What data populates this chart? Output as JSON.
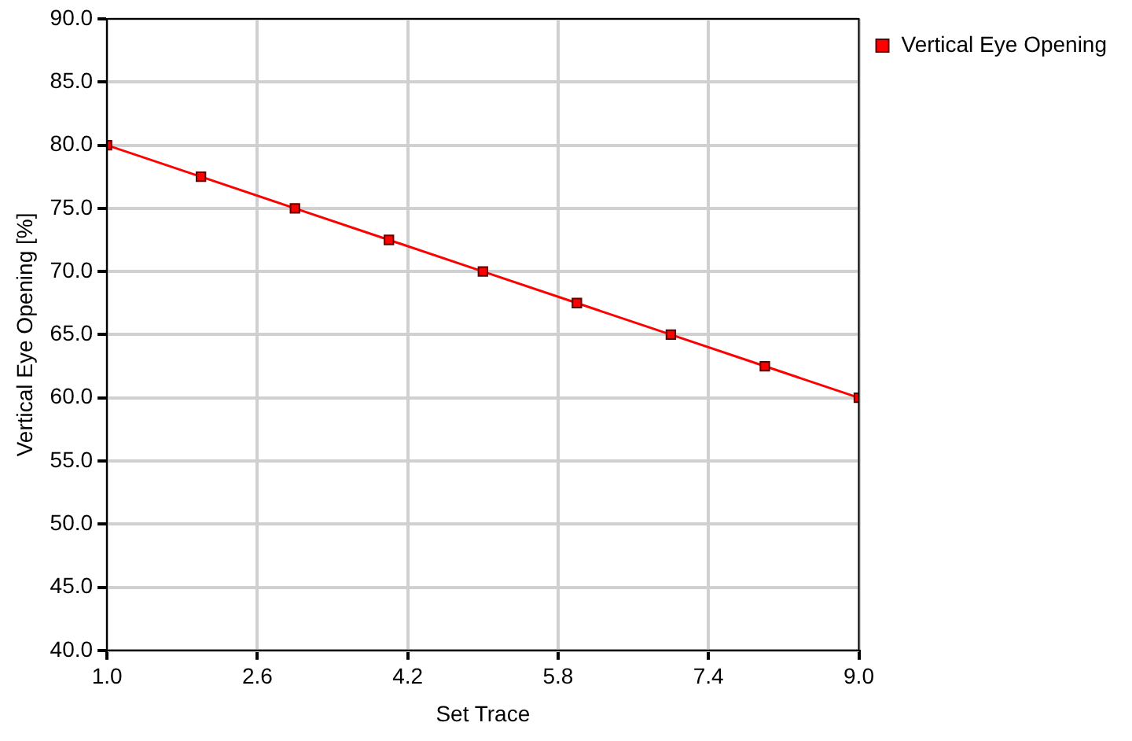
{
  "chart_data": {
    "type": "line",
    "xlabel": "Set Trace",
    "ylabel": "Vertical Eye Opening [%]",
    "x": [
      1,
      2,
      3,
      4,
      5,
      6,
      7,
      8,
      9
    ],
    "series": [
      {
        "name": "Vertical Eye Opening",
        "color": "#ff0000",
        "values": [
          80,
          77.5,
          75,
          72.5,
          70,
          67.5,
          65,
          62.5,
          60
        ]
      }
    ],
    "xlim": [
      1,
      9
    ],
    "xticks": [
      {
        "value": 1,
        "label": "1.0"
      },
      {
        "value": 2.6,
        "label": "2.6"
      },
      {
        "value": 4.2,
        "label": "4.2"
      },
      {
        "value": 5.8,
        "label": "5.8"
      },
      {
        "value": 7.4,
        "label": "7.4"
      },
      {
        "value": 9,
        "label": "9.0"
      }
    ],
    "ylim": [
      40,
      90
    ],
    "yticks": [
      {
        "value": 40,
        "label": "40.0"
      },
      {
        "value": 45,
        "label": "45.0"
      },
      {
        "value": 50,
        "label": "50.0"
      },
      {
        "value": 55,
        "label": "55.0"
      },
      {
        "value": 60,
        "label": "60.0"
      },
      {
        "value": 65,
        "label": "65.0"
      },
      {
        "value": 70,
        "label": "70.0"
      },
      {
        "value": 75,
        "label": "75.0"
      },
      {
        "value": 80,
        "label": "80.0"
      },
      {
        "value": 85,
        "label": "85.0"
      },
      {
        "value": 90,
        "label": "90.0"
      }
    ],
    "grid": true,
    "legend": "top right",
    "marker": "square",
    "line_style": "solid"
  }
}
